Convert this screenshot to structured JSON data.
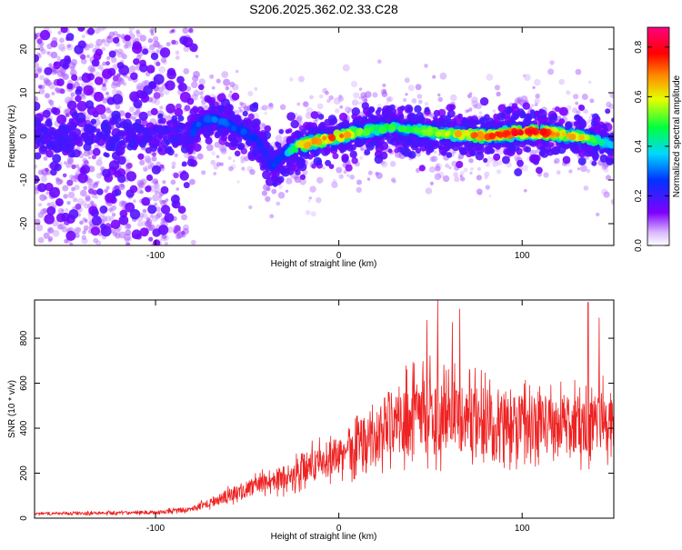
{
  "title": "S206.2025.362.02.33.C28",
  "chart_data": [
    {
      "type": "heatmap",
      "title": "S206.2025.362.02.33.C28",
      "xlabel": "Height of straight line (km)",
      "ylabel": "Frequency (Hz)",
      "xlim": [
        -166,
        150
      ],
      "ylim": [
        -25,
        25
      ],
      "xticks": [
        -100,
        0,
        100
      ],
      "yticks": [
        20,
        10,
        0,
        -10,
        -20
      ],
      "xtick_labels": [
        "-100",
        "0",
        "100"
      ],
      "ytick_labels": [
        "20",
        "10",
        "0",
        "-10",
        "-20"
      ],
      "colorbar": {
        "label": "Normalized spectral amplitude",
        "range": [
          0.0,
          0.88
        ],
        "ticks": [
          0.0,
          0.2,
          0.4,
          0.6,
          0.8
        ],
        "tick_labels": [
          "0.0",
          "0.2",
          "0.4",
          "0.6",
          "0.8"
        ],
        "colormap": "rainbow"
      },
      "ridge_center_hz": {
        "x": [
          -166,
          -120,
          -82,
          -76,
          -70,
          -62,
          -52,
          -44,
          -40,
          -36,
          -32,
          -26,
          -20,
          -10,
          0,
          10,
          20,
          30,
          40,
          50,
          60,
          70,
          80,
          90,
          100,
          110,
          120,
          130,
          140,
          150
        ],
        "y": [
          0,
          0,
          0,
          3,
          4,
          3,
          1,
          -1,
          -4,
          -7,
          -5,
          -3,
          -2,
          -1,
          0,
          1,
          1.5,
          2,
          1.5,
          1,
          0.5,
          0.5,
          0,
          0.5,
          1,
          1,
          0.5,
          0,
          -1,
          -2
        ]
      },
      "ridge_amplitude": {
        "x": [
          -166,
          -85,
          -80,
          -70,
          -60,
          -50,
          -40,
          -30,
          -20,
          -10,
          0,
          10,
          20,
          30,
          40,
          50,
          60,
          70,
          80,
          90,
          100,
          110,
          120,
          130,
          140,
          150
        ],
        "y": [
          0.15,
          0.15,
          0.3,
          0.35,
          0.3,
          0.3,
          0.25,
          0.3,
          0.7,
          0.75,
          0.8,
          0.6,
          0.55,
          0.5,
          0.5,
          0.6,
          0.6,
          0.75,
          0.75,
          0.8,
          0.85,
          0.88,
          0.7,
          0.7,
          0.5,
          0.35
        ]
      }
    },
    {
      "type": "line",
      "xlabel": "Height of straight line (km)",
      "ylabel": "SNR (10 * v/v)",
      "xlim": [
        -166,
        150
      ],
      "ylim": [
        0,
        970
      ],
      "xticks": [
        -100,
        0,
        100
      ],
      "yticks": [
        0,
        200,
        400,
        600,
        800
      ],
      "xtick_labels": [
        "-100",
        "0",
        "100"
      ],
      "ytick_labels": [
        "0",
        "200",
        "400",
        "600",
        "800"
      ],
      "color": "#ee2222",
      "series": [
        {
          "name": "SNR",
          "trend_x": [
            -166,
            -100,
            -80,
            -60,
            -40,
            -30,
            -20,
            -10,
            0,
            10,
            20,
            30,
            40,
            50,
            60,
            70,
            80,
            100,
            120,
            140,
            150
          ],
          "trend_y": [
            20,
            25,
            40,
            100,
            160,
            180,
            220,
            250,
            280,
            320,
            380,
            430,
            450,
            460,
            460,
            450,
            440,
            420,
            410,
            420,
            440
          ],
          "spread_y": [
            8,
            10,
            15,
            40,
            60,
            80,
            90,
            100,
            110,
            140,
            170,
            200,
            220,
            230,
            220,
            200,
            190,
            180,
            170,
            180,
            190
          ],
          "peak_x": [
            48,
            54,
            62,
            66,
            136,
            142
          ],
          "peak_y": [
            880,
            970,
            870,
            930,
            960,
            890
          ]
        }
      ]
    }
  ]
}
